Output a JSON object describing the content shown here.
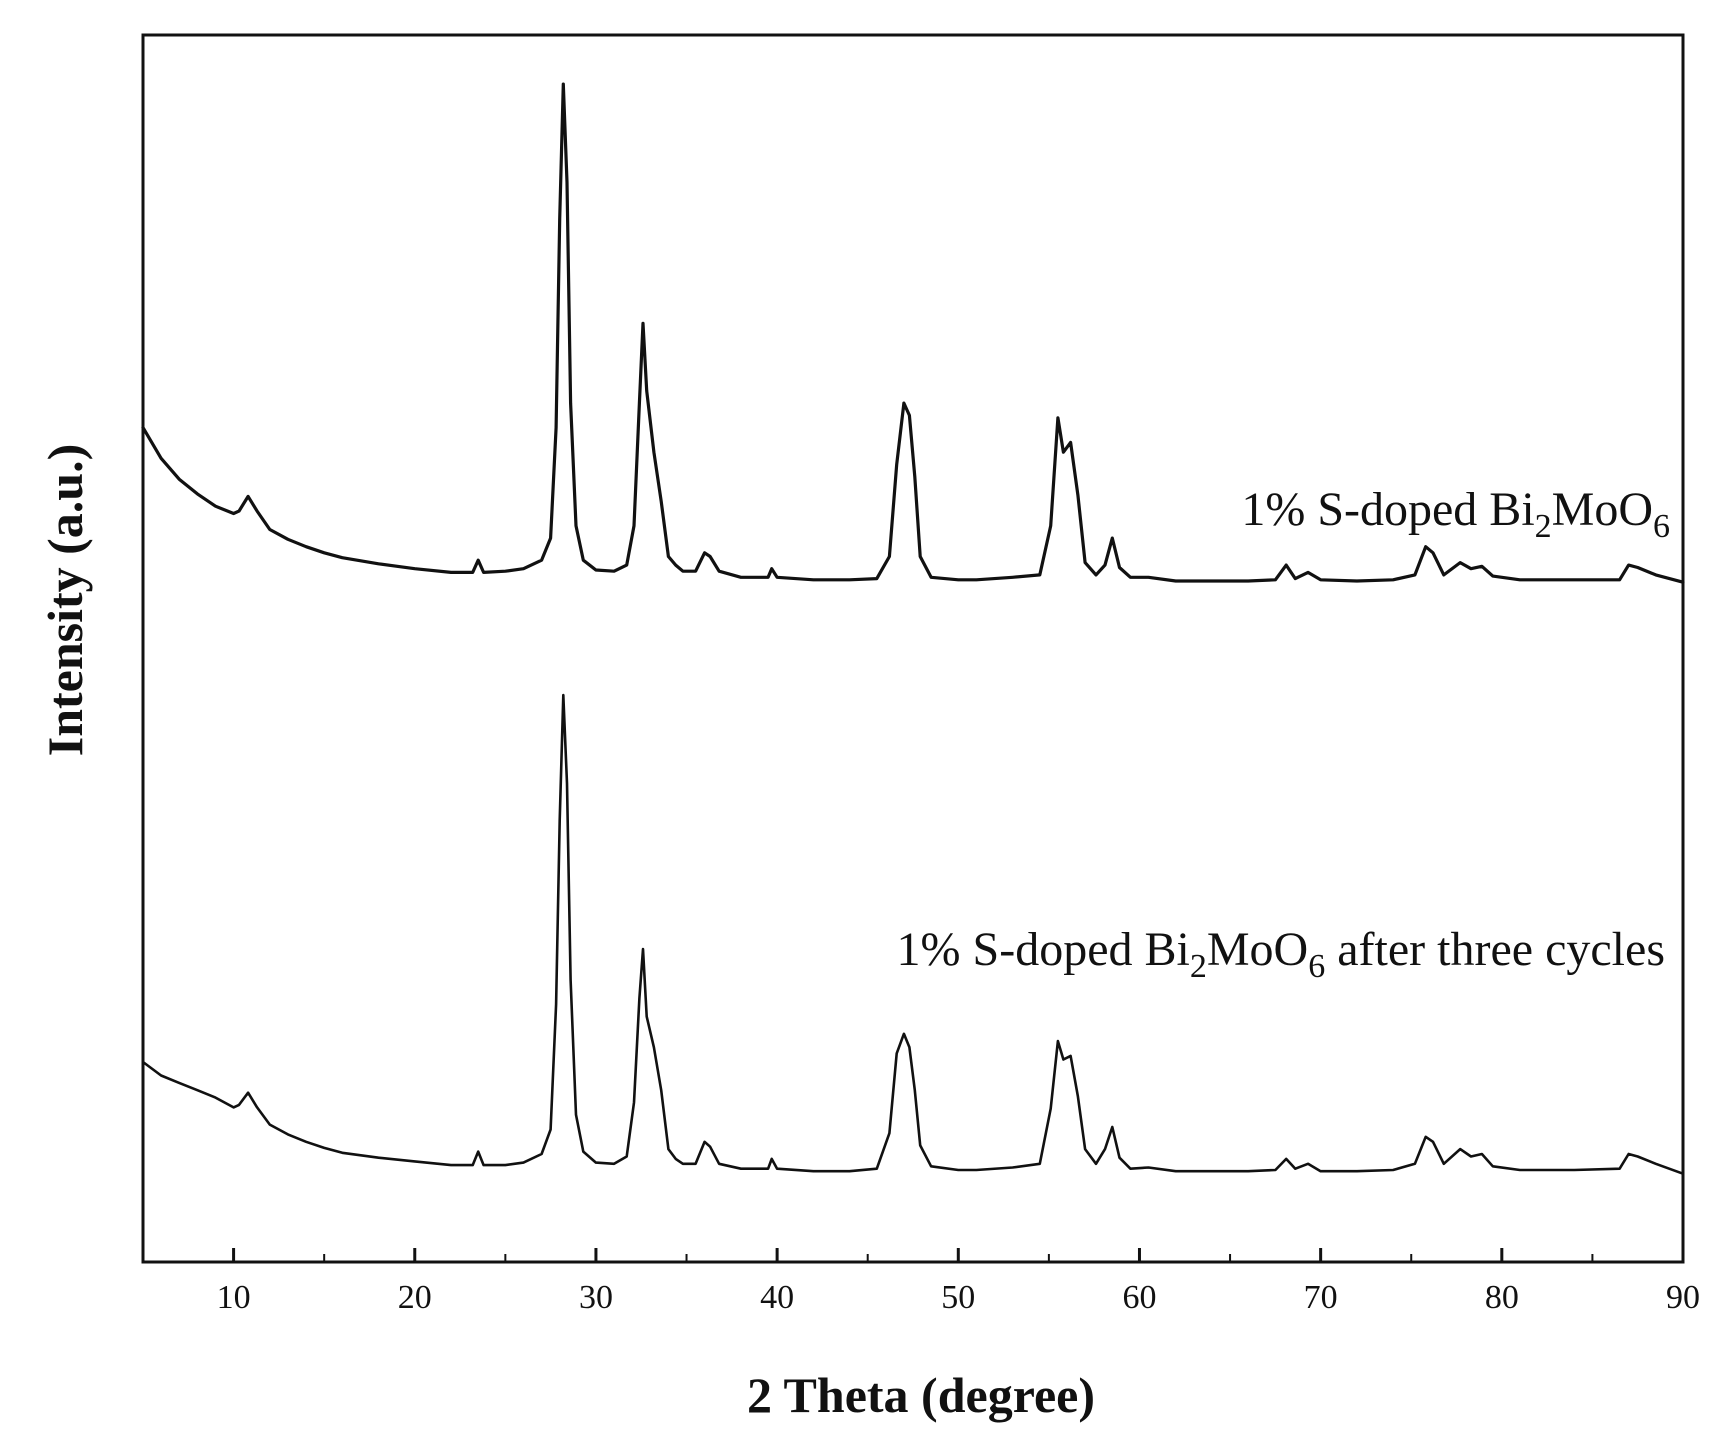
{
  "chart_data": {
    "type": "line",
    "xlabel": "2 Theta (degree)",
    "ylabel": "Intensity (a.u.)",
    "xlim": [
      5,
      90
    ],
    "ylim": [
      0,
      1000
    ],
    "xticks": [
      10,
      20,
      30,
      40,
      50,
      60,
      70,
      80,
      90
    ],
    "yticks": [],
    "grid": false,
    "legend": "none",
    "series": [
      {
        "name": "1% S-doped Bi2MoO6",
        "label": {
          "pre": "1% S-doped Bi",
          "sub1": "2",
          "mid": "MoO",
          "sub2": "6",
          "post": ""
        },
        "points": [
          [
            5,
            680
          ],
          [
            6,
            655
          ],
          [
            7,
            638
          ],
          [
            8,
            626
          ],
          [
            9,
            616
          ],
          [
            10,
            610
          ],
          [
            10.3,
            612
          ],
          [
            10.8,
            624
          ],
          [
            11.3,
            612
          ],
          [
            12,
            597
          ],
          [
            13,
            589
          ],
          [
            14,
            583
          ],
          [
            15,
            578
          ],
          [
            16,
            574
          ],
          [
            18,
            569
          ],
          [
            20,
            565
          ],
          [
            22,
            562
          ],
          [
            23.2,
            562
          ],
          [
            23.5,
            572
          ],
          [
            23.8,
            562
          ],
          [
            25,
            563
          ],
          [
            26,
            565
          ],
          [
            27,
            572
          ],
          [
            27.5,
            590
          ],
          [
            27.8,
            680
          ],
          [
            28.0,
            850
          ],
          [
            28.2,
            960
          ],
          [
            28.4,
            880
          ],
          [
            28.6,
            700
          ],
          [
            28.9,
            600
          ],
          [
            29.3,
            572
          ],
          [
            30,
            564
          ],
          [
            31,
            563
          ],
          [
            31.7,
            568
          ],
          [
            32.1,
            600
          ],
          [
            32.4,
            700
          ],
          [
            32.6,
            765
          ],
          [
            32.8,
            710
          ],
          [
            33.2,
            660
          ],
          [
            33.6,
            620
          ],
          [
            34,
            575
          ],
          [
            34.4,
            568
          ],
          [
            34.8,
            563
          ],
          [
            35.5,
            563
          ],
          [
            36.0,
            578
          ],
          [
            36.3,
            575
          ],
          [
            36.8,
            563
          ],
          [
            38,
            558
          ],
          [
            39.5,
            558
          ],
          [
            39.7,
            565
          ],
          [
            40,
            558
          ],
          [
            42,
            556
          ],
          [
            44,
            556
          ],
          [
            45.5,
            557
          ],
          [
            46.2,
            575
          ],
          [
            46.6,
            650
          ],
          [
            47.0,
            700
          ],
          [
            47.3,
            690
          ],
          [
            47.6,
            640
          ],
          [
            47.9,
            575
          ],
          [
            48.5,
            558
          ],
          [
            50,
            556
          ],
          [
            51,
            556
          ],
          [
            53,
            558
          ],
          [
            54.5,
            560
          ],
          [
            55.1,
            600
          ],
          [
            55.5,
            688
          ],
          [
            55.8,
            660
          ],
          [
            56.2,
            668
          ],
          [
            56.6,
            625
          ],
          [
            57.0,
            570
          ],
          [
            57.6,
            560
          ],
          [
            58.1,
            568
          ],
          [
            58.5,
            590
          ],
          [
            58.9,
            566
          ],
          [
            59.5,
            558
          ],
          [
            60.5,
            558
          ],
          [
            62,
            555
          ],
          [
            66,
            555
          ],
          [
            67.5,
            556
          ],
          [
            68.1,
            568
          ],
          [
            68.6,
            557
          ],
          [
            69.3,
            562
          ],
          [
            70,
            556
          ],
          [
            72,
            555
          ],
          [
            74,
            556
          ],
          [
            75.2,
            560
          ],
          [
            75.8,
            583
          ],
          [
            76.2,
            578
          ],
          [
            76.8,
            560
          ],
          [
            77.7,
            570
          ],
          [
            78.3,
            565
          ],
          [
            78.9,
            567
          ],
          [
            79.5,
            559
          ],
          [
            81,
            556
          ],
          [
            84,
            556
          ],
          [
            86.5,
            556
          ],
          [
            87.0,
            568
          ],
          [
            87.5,
            566
          ],
          [
            88.5,
            560
          ],
          [
            90,
            554
          ]
        ]
      },
      {
        "name": "1% S-doped Bi2MoO6 after three cycles",
        "label": {
          "pre": "1% S-doped Bi",
          "sub1": "2",
          "mid": "MoO",
          "sub2": "6",
          "post": " after three cycles"
        },
        "points": [
          [
            5,
            163
          ],
          [
            6,
            152
          ],
          [
            7,
            146
          ],
          [
            8,
            140
          ],
          [
            9,
            134
          ],
          [
            10,
            126
          ],
          [
            10.3,
            128
          ],
          [
            10.8,
            138
          ],
          [
            11.3,
            126
          ],
          [
            12,
            112
          ],
          [
            13,
            104
          ],
          [
            14,
            98
          ],
          [
            15,
            93
          ],
          [
            16,
            89
          ],
          [
            18,
            85
          ],
          [
            20,
            82
          ],
          [
            22,
            79
          ],
          [
            23.2,
            79
          ],
          [
            23.5,
            90
          ],
          [
            23.8,
            79
          ],
          [
            25,
            79
          ],
          [
            26,
            81
          ],
          [
            27,
            88
          ],
          [
            27.5,
            108
          ],
          [
            27.8,
            210
          ],
          [
            28.0,
            360
          ],
          [
            28.2,
            462
          ],
          [
            28.4,
            390
          ],
          [
            28.6,
            230
          ],
          [
            28.9,
            120
          ],
          [
            29.3,
            90
          ],
          [
            30,
            81
          ],
          [
            31,
            80
          ],
          [
            31.7,
            86
          ],
          [
            32.1,
            130
          ],
          [
            32.4,
            215
          ],
          [
            32.6,
            255
          ],
          [
            32.8,
            200
          ],
          [
            33.2,
            175
          ],
          [
            33.6,
            140
          ],
          [
            34,
            92
          ],
          [
            34.4,
            84
          ],
          [
            34.8,
            80
          ],
          [
            35.5,
            80
          ],
          [
            36.0,
            98
          ],
          [
            36.3,
            94
          ],
          [
            36.8,
            80
          ],
          [
            38,
            76
          ],
          [
            39.5,
            76
          ],
          [
            39.7,
            84
          ],
          [
            40,
            76
          ],
          [
            42,
            74
          ],
          [
            44,
            74
          ],
          [
            45.5,
            76
          ],
          [
            46.2,
            105
          ],
          [
            46.6,
            170
          ],
          [
            47.0,
            186
          ],
          [
            47.3,
            175
          ],
          [
            47.6,
            140
          ],
          [
            47.9,
            95
          ],
          [
            48.5,
            78
          ],
          [
            50,
            75
          ],
          [
            51,
            75
          ],
          [
            53,
            77
          ],
          [
            54.5,
            80
          ],
          [
            55.1,
            125
          ],
          [
            55.5,
            180
          ],
          [
            55.8,
            165
          ],
          [
            56.2,
            168
          ],
          [
            56.6,
            135
          ],
          [
            57.0,
            92
          ],
          [
            57.6,
            80
          ],
          [
            58.1,
            92
          ],
          [
            58.5,
            110
          ],
          [
            58.9,
            85
          ],
          [
            59.5,
            76
          ],
          [
            60.5,
            77
          ],
          [
            62,
            74
          ],
          [
            66,
            74
          ],
          [
            67.5,
            75
          ],
          [
            68.1,
            84
          ],
          [
            68.6,
            76
          ],
          [
            69.3,
            80
          ],
          [
            70,
            74
          ],
          [
            72,
            74
          ],
          [
            74,
            75
          ],
          [
            75.2,
            80
          ],
          [
            75.8,
            102
          ],
          [
            76.2,
            98
          ],
          [
            76.8,
            80
          ],
          [
            77.7,
            92
          ],
          [
            78.3,
            86
          ],
          [
            78.9,
            88
          ],
          [
            79.5,
            78
          ],
          [
            81,
            75
          ],
          [
            84,
            75
          ],
          [
            86.5,
            76
          ],
          [
            87.0,
            88
          ],
          [
            87.5,
            86
          ],
          [
            88.5,
            80
          ],
          [
            90,
            72
          ]
        ]
      }
    ]
  }
}
